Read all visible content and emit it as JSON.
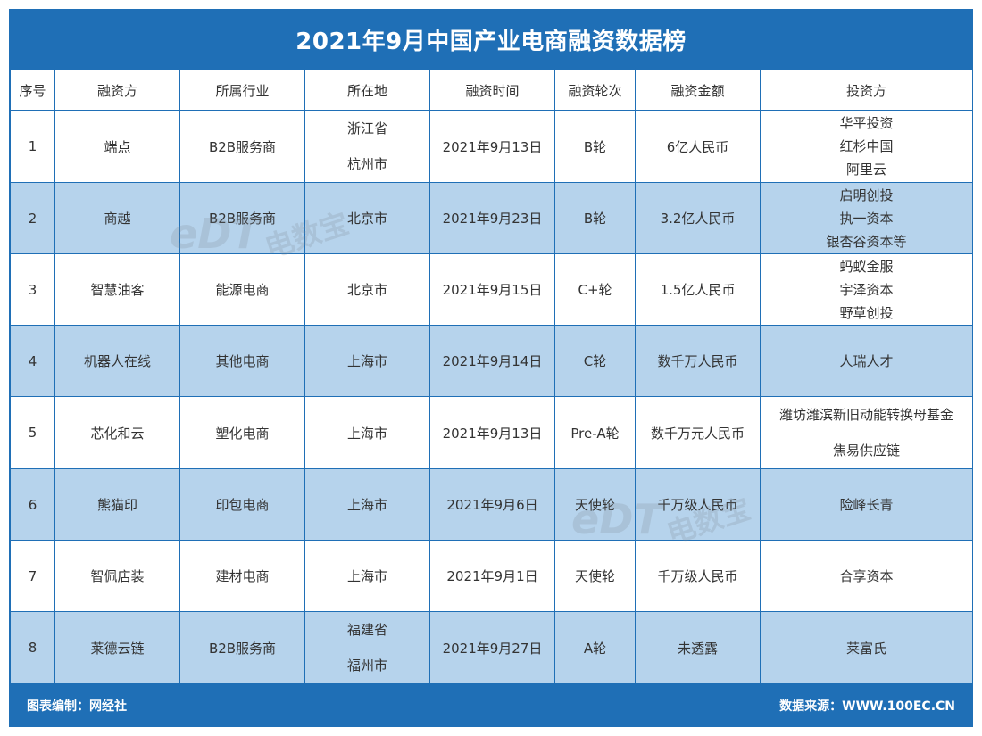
{
  "title": "2021年9月中国产业电商融资数据榜",
  "headers": [
    "序号",
    "融资方",
    "所属行业",
    "所在地",
    "融资时间",
    "融资轮次",
    "融资金额",
    "投资方"
  ],
  "rows": [
    {
      "no": "1",
      "company": "端点",
      "industry": "B2B服务商",
      "location": [
        "浙江省",
        "杭州市"
      ],
      "date": "2021年9月13日",
      "round": "B轮",
      "amount": "6亿人民币",
      "investors": [
        "华平投资",
        "红杉中国",
        "阿里云"
      ]
    },
    {
      "no": "2",
      "company": "商越",
      "industry": "B2B服务商",
      "location": [
        "北京市"
      ],
      "date": "2021年9月23日",
      "round": "B轮",
      "amount": "3.2亿人民币",
      "investors": [
        "启明创投",
        "执一资本",
        "银杏谷资本等"
      ]
    },
    {
      "no": "3",
      "company": "智慧油客",
      "industry": "能源电商",
      "location": [
        "北京市"
      ],
      "date": "2021年9月15日",
      "round": "C+轮",
      "amount": "1.5亿人民币",
      "investors": [
        "蚂蚁金服",
        "宇泽资本",
        "野草创投"
      ]
    },
    {
      "no": "4",
      "company": "机器人在线",
      "industry": "其他电商",
      "location": [
        "上海市"
      ],
      "date": "2021年9月14日",
      "round": "C轮",
      "amount": "数千万人民币",
      "investors": [
        "人瑞人才"
      ]
    },
    {
      "no": "5",
      "company": "芯化和云",
      "industry": "塑化电商",
      "location": [
        "上海市"
      ],
      "date": "2021年9月13日",
      "round": "Pre-A轮",
      "amount": "数千万元人民币",
      "investors": [
        "潍坊潍滨新旧动能转换母基金",
        "焦易供应链"
      ]
    },
    {
      "no": "6",
      "company": "熊猫印",
      "industry": "印包电商",
      "location": [
        "上海市"
      ],
      "date": "2021年9月6日",
      "round": "天使轮",
      "amount": "千万级人民币",
      "investors": [
        "险峰长青"
      ]
    },
    {
      "no": "7",
      "company": "智佩店装",
      "industry": "建材电商",
      "location": [
        "上海市"
      ],
      "date": "2021年9月1日",
      "round": "天使轮",
      "amount": "千万级人民币",
      "investors": [
        "合享资本"
      ]
    },
    {
      "no": "8",
      "company": "莱德云链",
      "industry": "B2B服务商",
      "location": [
        "福建省",
        "福州市"
      ],
      "date": "2021年9月27日",
      "round": "A轮",
      "amount": "未透露",
      "investors": [
        "莱富氏"
      ]
    }
  ],
  "footer": {
    "left": "图表编制：网经社",
    "right": "数据来源：WWW.100EC.CN"
  },
  "watermark": {
    "logo": "eDT",
    "text": "电数宝"
  },
  "colors": {
    "brand": "#1f6fb6",
    "row_alt": "#b6d3ec"
  }
}
